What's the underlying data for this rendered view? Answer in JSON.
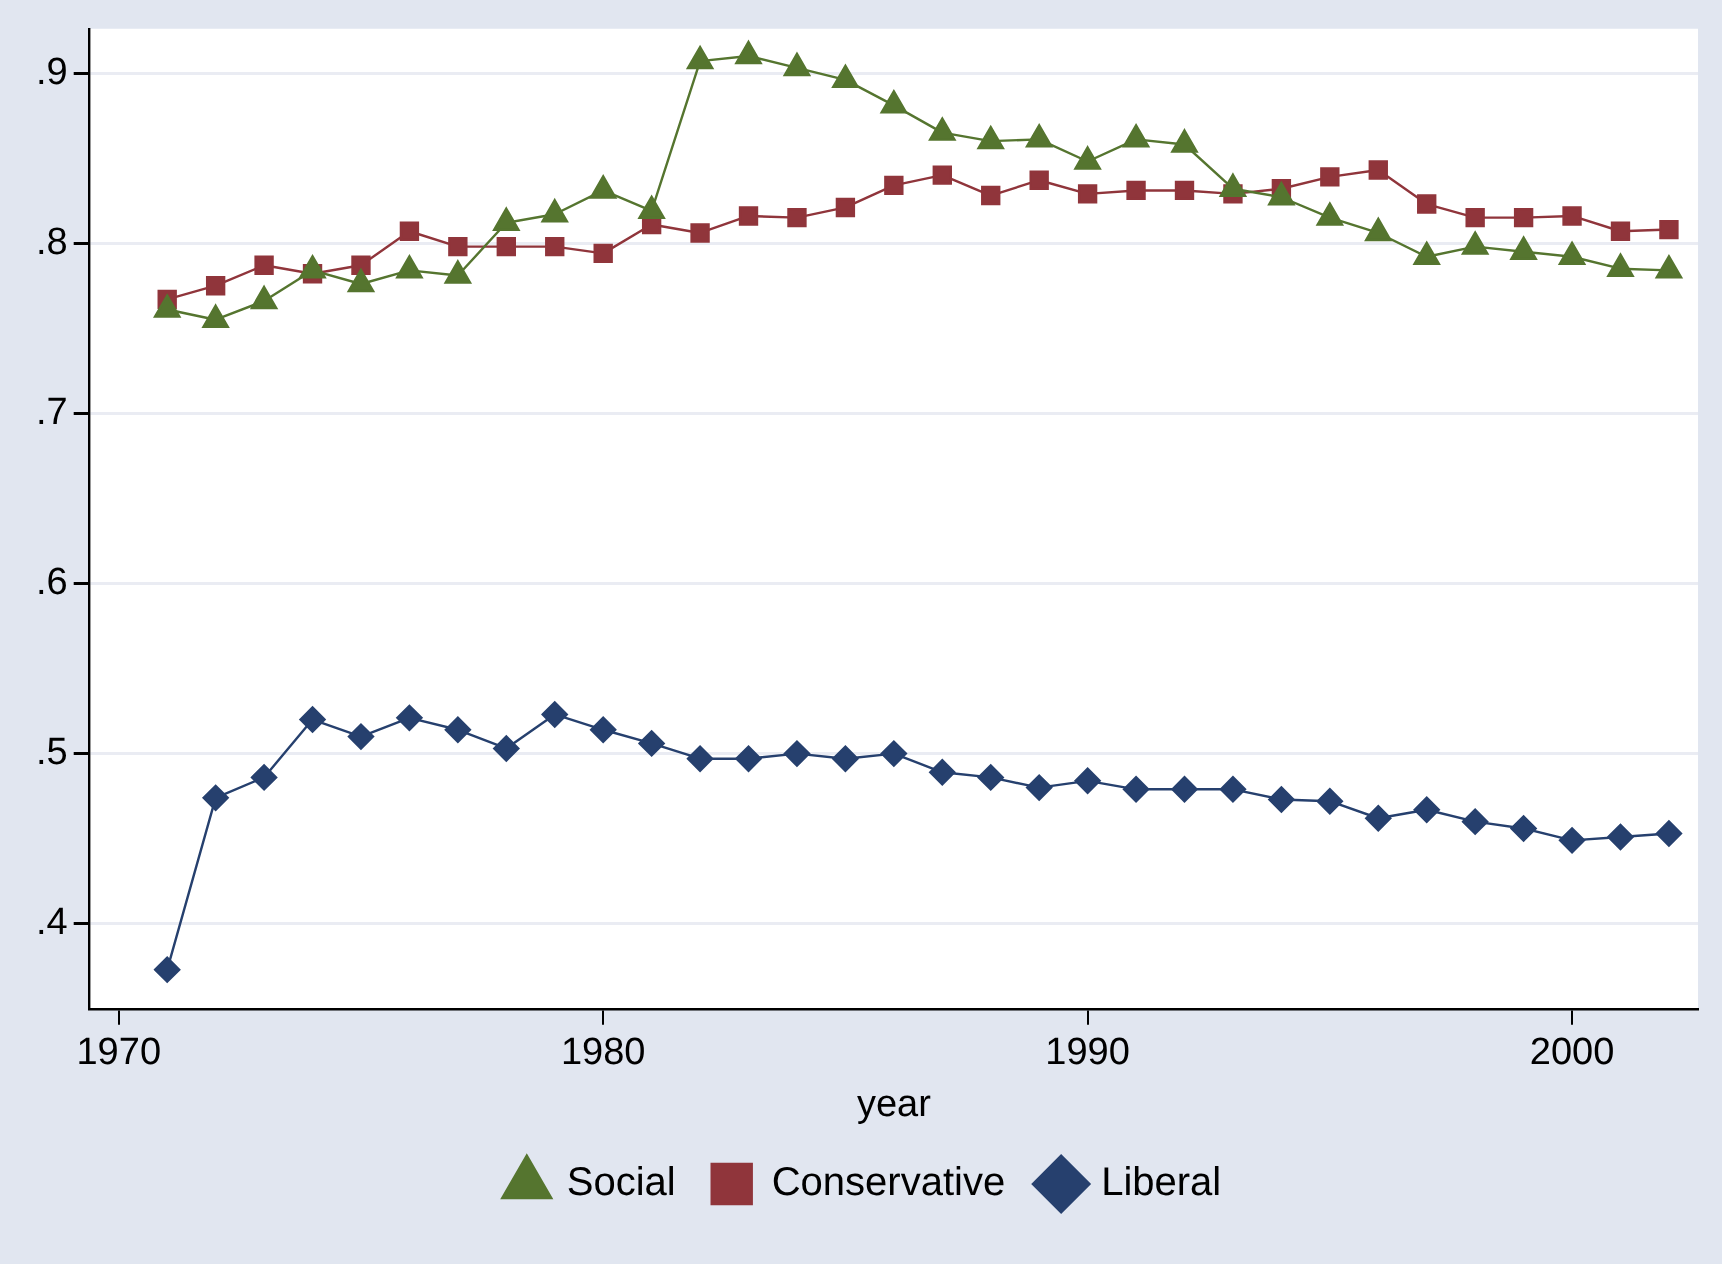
{
  "chart_data": {
    "type": "line",
    "xlabel": "year",
    "x": [
      1971,
      1972,
      1973,
      1974,
      1975,
      1976,
      1977,
      1978,
      1979,
      1980,
      1981,
      1982,
      1983,
      1984,
      1985,
      1986,
      1987,
      1988,
      1989,
      1990,
      1991,
      1992,
      1993,
      1994,
      1995,
      1996,
      1997,
      1998,
      1999,
      2000,
      2001,
      2002
    ],
    "series": [
      {
        "name": "Liberal",
        "color": "#26406e",
        "marker": "diamond",
        "values": [
          0.373,
          0.474,
          0.486,
          0.52,
          0.51,
          0.521,
          0.514,
          0.503,
          0.523,
          0.514,
          0.506,
          0.497,
          0.497,
          0.5,
          0.497,
          0.5,
          0.489,
          0.486,
          0.48,
          0.484,
          0.479,
          0.479,
          0.479,
          0.473,
          0.472,
          0.462,
          0.467,
          0.46,
          0.456,
          0.449,
          0.451,
          0.453
        ]
      },
      {
        "name": "Conservative",
        "color": "#90353b",
        "marker": "square",
        "values": [
          0.767,
          0.775,
          0.787,
          0.782,
          0.787,
          0.807,
          0.798,
          0.798,
          0.798,
          0.794,
          0.811,
          0.806,
          0.816,
          0.815,
          0.821,
          0.834,
          0.84,
          0.828,
          0.837,
          0.829,
          0.831,
          0.831,
          0.829,
          0.832,
          0.839,
          0.843,
          0.823,
          0.815,
          0.815,
          0.816,
          0.807,
          0.808
        ]
      },
      {
        "name": "Social",
        "color": "#55752f",
        "marker": "triangle",
        "values": [
          0.761,
          0.755,
          0.766,
          0.784,
          0.776,
          0.784,
          0.781,
          0.812,
          0.817,
          0.831,
          0.819,
          0.907,
          0.91,
          0.903,
          0.896,
          0.881,
          0.865,
          0.86,
          0.861,
          0.848,
          0.861,
          0.858,
          0.832,
          0.827,
          0.815,
          0.806,
          0.792,
          0.798,
          0.795,
          0.792,
          0.785,
          0.784
        ]
      }
    ],
    "xlim": [
      1969.4,
      2002.6
    ],
    "xticks": [
      1970,
      1980,
      1990,
      2000
    ],
    "ylim": [
      0.35,
      0.926
    ],
    "yticks": [
      {
        "value": 0.4,
        "label": ".4"
      },
      {
        "value": 0.5,
        "label": ".5"
      },
      {
        "value": 0.6,
        "label": ".6"
      },
      {
        "value": 0.7,
        "label": ".7"
      },
      {
        "value": 0.8,
        "label": ".8"
      },
      {
        "value": 0.9,
        "label": ".9"
      }
    ],
    "grid": "y",
    "legend": "bottom",
    "line_style": "solid"
  }
}
